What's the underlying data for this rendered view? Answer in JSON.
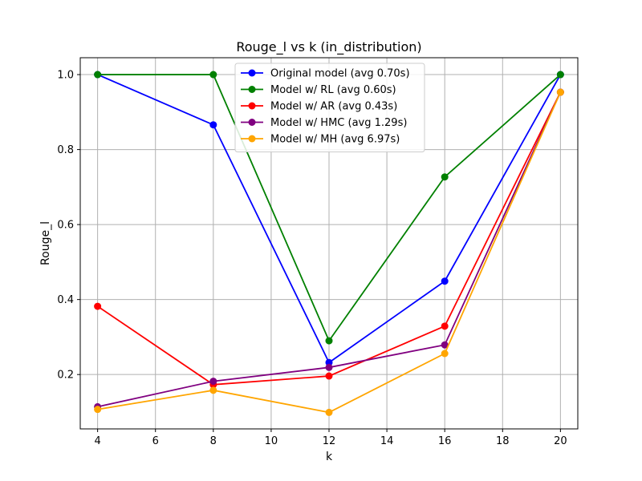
{
  "chart_data": {
    "type": "line",
    "title": "Rouge_l vs k (in_distribution)",
    "xlabel": "k",
    "ylabel": "Rouge_l",
    "x": [
      4,
      8,
      12,
      16,
      20
    ],
    "xlim": [
      3.4,
      20.6
    ],
    "ylim": [
      0.055,
      1.045
    ],
    "xticks": [
      4,
      6,
      8,
      10,
      12,
      14,
      16,
      18,
      20
    ],
    "yticks": [
      0.2,
      0.4,
      0.6,
      0.8,
      1.0
    ],
    "ytick_labels": [
      "0.2",
      "0.4",
      "0.6",
      "0.8",
      "1.0"
    ],
    "grid": true,
    "legend_position": "top-center",
    "series": [
      {
        "name": "Original model (avg 0.70s)",
        "color": "#0000ff",
        "values": [
          1.0,
          0.866,
          0.232,
          0.449,
          1.0
        ]
      },
      {
        "name": "Model w/ RL (avg 0.60s)",
        "color": "#008000",
        "values": [
          1.0,
          1.0,
          0.29,
          0.727,
          1.0
        ]
      },
      {
        "name": "Model w/ AR (avg 0.43s)",
        "color": "#ff0000",
        "values": [
          0.382,
          0.173,
          0.196,
          0.329,
          0.953
        ]
      },
      {
        "name": "Model w/ HMC (avg 1.29s)",
        "color": "#800080",
        "values": [
          0.114,
          0.182,
          0.219,
          0.279,
          0.953
        ]
      },
      {
        "name": "Model w/ MH (avg 6.97s)",
        "color": "#ffa500",
        "values": [
          0.107,
          0.158,
          0.099,
          0.256,
          0.953
        ]
      }
    ]
  }
}
